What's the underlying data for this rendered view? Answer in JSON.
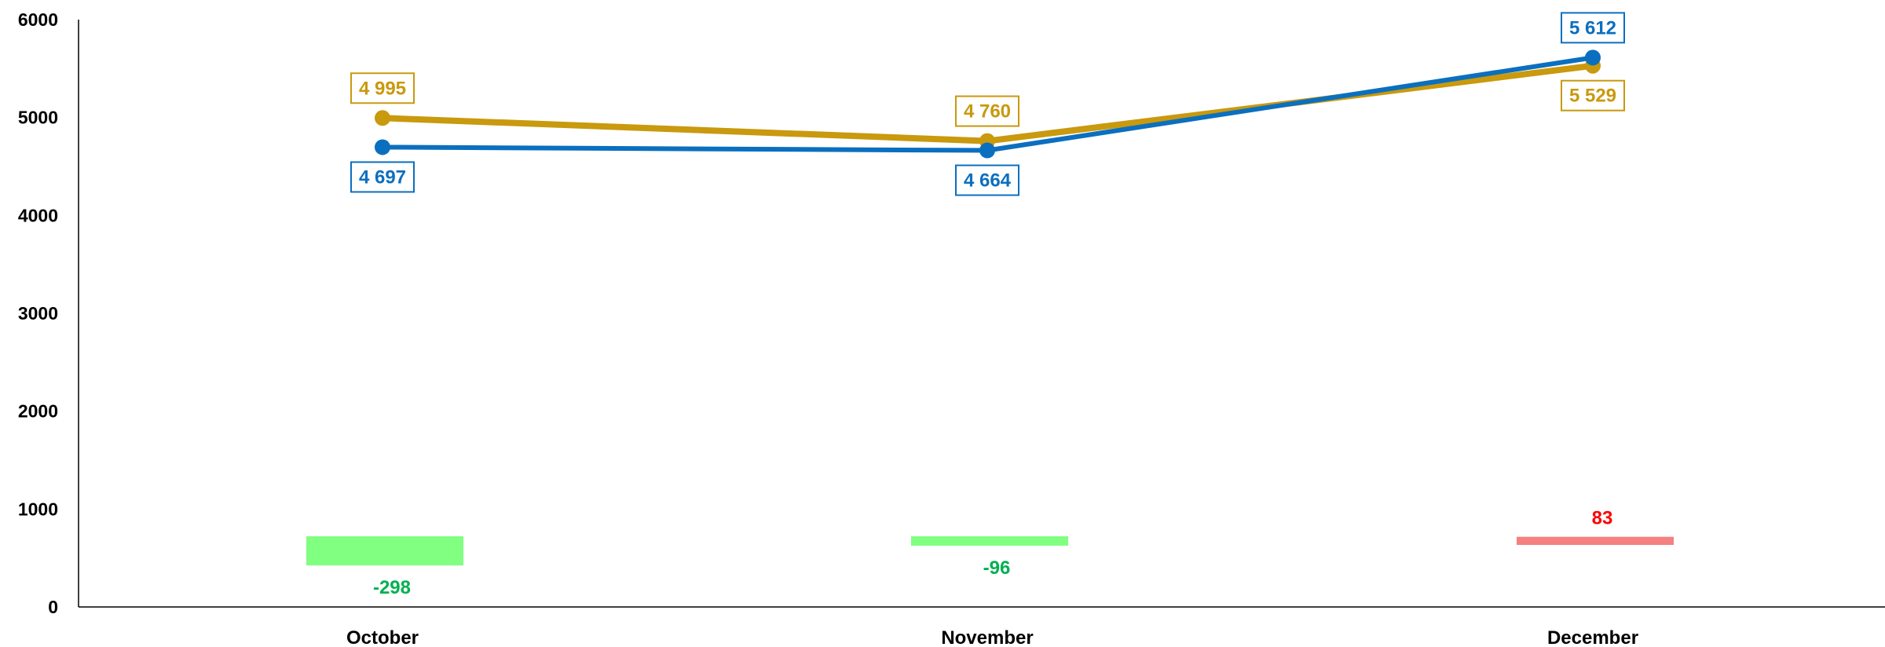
{
  "chart_data": {
    "type": "line",
    "categories": [
      "October",
      "November",
      "December"
    ],
    "series": [
      {
        "values": [
          4995,
          4760,
          5529
        ],
        "labels": [
          "4 995",
          "4 760",
          "5 529"
        ],
        "color": "#C9990E"
      },
      {
        "values": [
          4697,
          4664,
          5612
        ],
        "labels": [
          "4 697",
          "4 664",
          "5 612"
        ],
        "color": "#0B6FBF"
      }
    ],
    "differences": {
      "values": [
        -298,
        -96,
        83
      ],
      "labels": [
        "-298",
        "-96",
        "83"
      ],
      "negative_bar_color": "#80FF80",
      "negative_text_color": "#00B050",
      "positive_bar_color": "#F58080",
      "positive_text_color": "#FF0000"
    },
    "ylim": [
      0,
      6000
    ],
    "yticks": [
      0,
      1000,
      2000,
      3000,
      4000,
      5000,
      6000
    ],
    "ytick_labels": [
      "0",
      "1000",
      "2000",
      "3000",
      "4000",
      "5000",
      "6000"
    ],
    "grid": false,
    "title": "",
    "xlabel": "",
    "ylabel": ""
  }
}
